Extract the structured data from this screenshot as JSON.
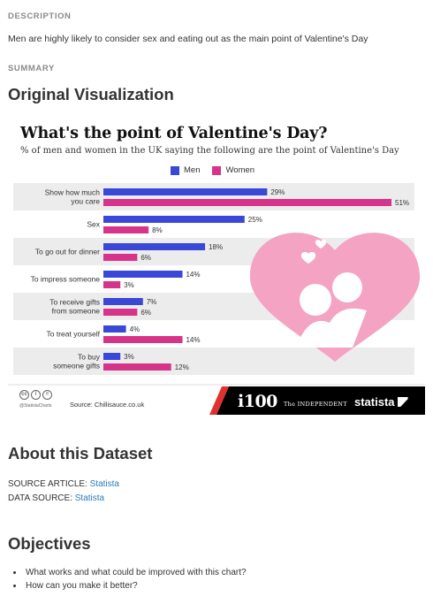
{
  "description": {
    "label": "DESCRIPTION",
    "text": "Men are highly likely to consider sex and eating out as the main point of Valentine's Day"
  },
  "summary": {
    "label": "SUMMARY",
    "heading": "Original Visualization"
  },
  "visualization": {
    "title": "What's the point of Valentine's Day?",
    "subtitle": "% of men and women in the UK saying the following are the point of Valentine's Day",
    "footer": {
      "handle": "@StatistaCharts",
      "source": "Source: Chillisauce.co.uk",
      "logo_i100": "i100",
      "logo_independent": "The INDEPENDENT",
      "logo_statista": "statista"
    },
    "colors": {
      "men": "#3a48d8",
      "women": "#d6338a",
      "heart": "#f4a3c3",
      "band": "#ececec",
      "footer": "#000000",
      "footer_red": "#e03030"
    }
  },
  "chart_data": {
    "type": "bar",
    "orientation": "horizontal",
    "title": "What's the point of Valentine's Day?",
    "subtitle": "% of men and women in the UK saying the following are the point of Valentine's Day",
    "categories": [
      [
        "Show how much",
        "you care"
      ],
      [
        "Sex"
      ],
      [
        "To go out for dinner"
      ],
      [
        "To impress someone"
      ],
      [
        "To receive gifts",
        "from someone"
      ],
      [
        "To treat yourself"
      ],
      [
        "To buy",
        "someone gifts"
      ]
    ],
    "series": [
      {
        "name": "Men",
        "values": [
          29,
          25,
          18,
          14,
          7,
          4,
          3
        ],
        "labels": [
          "29%",
          "25%",
          "18%",
          "14%",
          "7%",
          "4%",
          "3%"
        ]
      },
      {
        "name": "Women",
        "values": [
          51,
          8,
          6,
          3,
          6,
          14,
          12
        ],
        "labels": [
          "51%",
          "8%",
          "6%",
          "3%",
          "6%",
          "14%",
          "12%"
        ]
      }
    ],
    "xlim": [
      0,
      51
    ],
    "legend": "top-center"
  },
  "about": {
    "heading": "About this Dataset",
    "source_article_label": "SOURCE ARTICLE:",
    "source_article_link": "Statista",
    "data_source_label": "DATA SOURCE:",
    "data_source_link": "Statista"
  },
  "objectives": {
    "heading": "Objectives",
    "items": [
      "What works and what could be improved with this chart?",
      "How can you make it better?"
    ]
  }
}
